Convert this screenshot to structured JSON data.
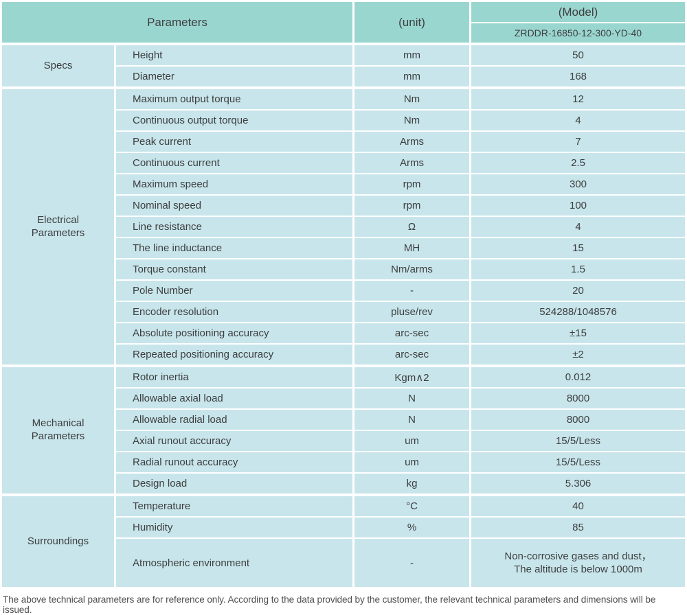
{
  "colors": {
    "header_bg": "#9ad6d0",
    "row_bg": "#c7e5eb",
    "divider": "#ffffff",
    "text": "#3e3e3e",
    "footer_text": "#4f4f4f"
  },
  "table": {
    "header": {
      "parameters_label": "Parameters",
      "unit_label": "(unit)",
      "model_label": "(Model)",
      "model_value": "ZRDDR-16850-12-300-YD-40"
    },
    "sections": [
      {
        "label": "Specs",
        "rows": [
          {
            "param": "Height",
            "unit": "mm",
            "value": "50"
          },
          {
            "param": "Diameter",
            "unit": "mm",
            "value": "168"
          }
        ]
      },
      {
        "label": "Electrical Parameters",
        "rows": [
          {
            "param": "Maximum output torque",
            "unit": "Nm",
            "value": "12"
          },
          {
            "param": "Continuous output torque",
            "unit": "Nm",
            "value": "4"
          },
          {
            "param": "Peak current",
            "unit": "Arms",
            "value": "7"
          },
          {
            "param": "Continuous current",
            "unit": "Arms",
            "value": "2.5"
          },
          {
            "param": "Maximum speed",
            "unit": "rpm",
            "value": "300"
          },
          {
            "param": "Nominal speed",
            "unit": "rpm",
            "value": "100"
          },
          {
            "param": "Line resistance",
            "unit": "Ω",
            "value": "4"
          },
          {
            "param": "The line inductance",
            "unit": "MH",
            "value": "15"
          },
          {
            "param": "Torque constant",
            "unit": "Nm/arms",
            "value": "1.5"
          },
          {
            "param": "Pole Number",
            "unit": "-",
            "value": "20"
          },
          {
            "param": "Encoder resolution",
            "unit": "pluse/rev",
            "value": "524288/1048576"
          },
          {
            "param": "Absolute positioning accuracy",
            "unit": "arc-sec",
            "value": "±15"
          },
          {
            "param": "Repeated positioning accuracy",
            "unit": "arc-sec",
            "value": "±2"
          }
        ]
      },
      {
        "label": "Mechanical Parameters",
        "rows": [
          {
            "param": "Rotor inertia",
            "unit": "Kgm∧2",
            "value": "0.012"
          },
          {
            "param": "Allowable axial load",
            "unit": "N",
            "value": "8000"
          },
          {
            "param": "Allowable radial load",
            "unit": "N",
            "value": "8000"
          },
          {
            "param": "Axial runout accuracy",
            "unit": "um",
            "value": "15/5/Less"
          },
          {
            "param": "Radial runout accuracy",
            "unit": "um",
            "value": "15/5/Less"
          },
          {
            "param": "Design load",
            "unit": "kg",
            "value": "5.306"
          }
        ]
      },
      {
        "label": "Surroundings",
        "rows": [
          {
            "param": "Temperature",
            "unit": "°C",
            "value": "40"
          },
          {
            "param": "Humidity",
            "unit": "%",
            "value": "85"
          },
          {
            "param": "Atmospheric environment",
            "unit": "-",
            "value": "Non-corrosive gases and dust，\nThe altitude is below 1000m"
          }
        ]
      }
    ],
    "footer_note": "The above technical parameters are for reference only. According to the data provided by the customer, the relevant technical parameters and dimensions will be issued."
  }
}
